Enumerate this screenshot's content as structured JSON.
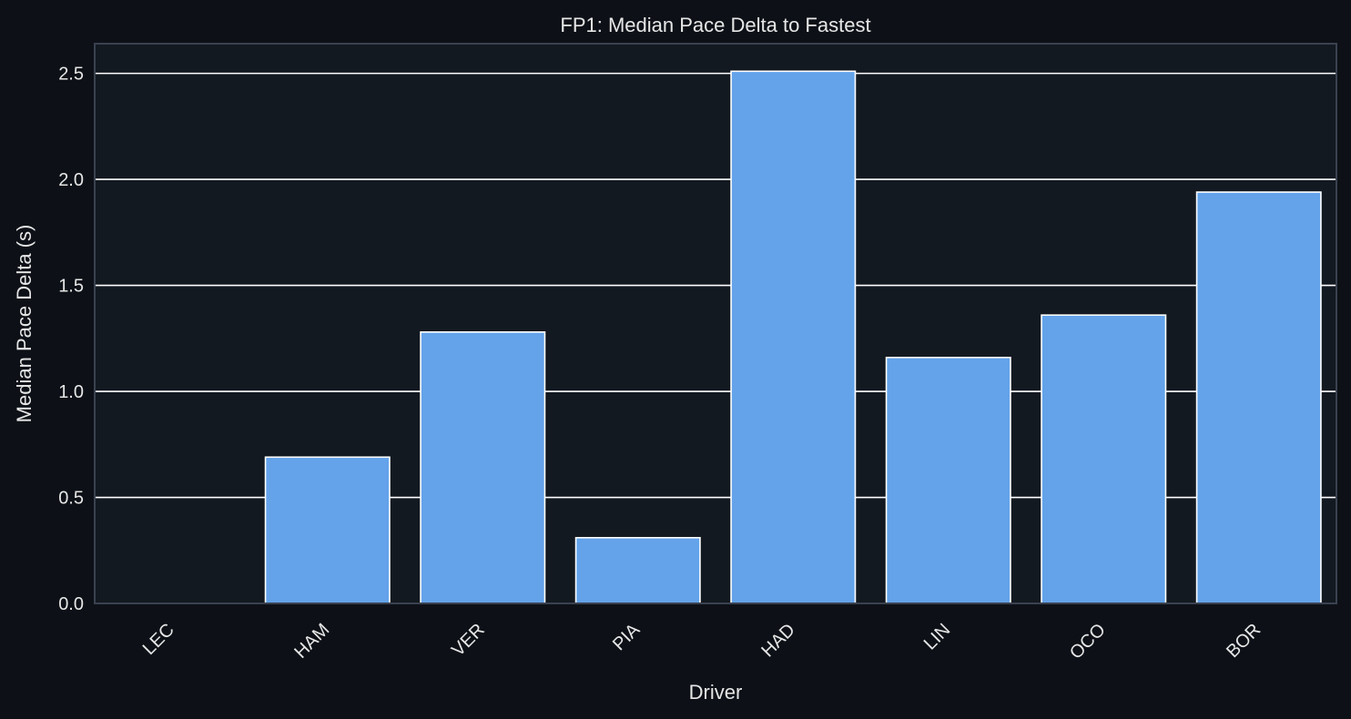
{
  "chart_data": {
    "type": "bar",
    "title": "FP1: Median Pace Delta to Fastest",
    "xlabel": "Driver",
    "ylabel": "Median Pace Delta (s)",
    "categories": [
      "LEC",
      "HAM",
      "VER",
      "PIA",
      "HAD",
      "LIN",
      "OCO",
      "BOR"
    ],
    "values": [
      0.0,
      0.69,
      1.28,
      0.31,
      2.51,
      1.16,
      1.36,
      1.94
    ],
    "ylim": [
      0,
      2.64
    ],
    "yticks": [
      0.0,
      0.5,
      1.0,
      1.5,
      2.0,
      2.5
    ],
    "ytick_labels": [
      "0.0",
      "0.5",
      "1.0",
      "1.5",
      "2.0",
      "2.5"
    ],
    "grid": "horizontal",
    "colors": {
      "background": "#0d1117",
      "plot_background": "#131920",
      "bar": "#64a3ea",
      "bar_edge": "#ffffff",
      "grid": "#ffffff",
      "text": "#e6e6e6",
      "axis": "#3a4250"
    }
  }
}
